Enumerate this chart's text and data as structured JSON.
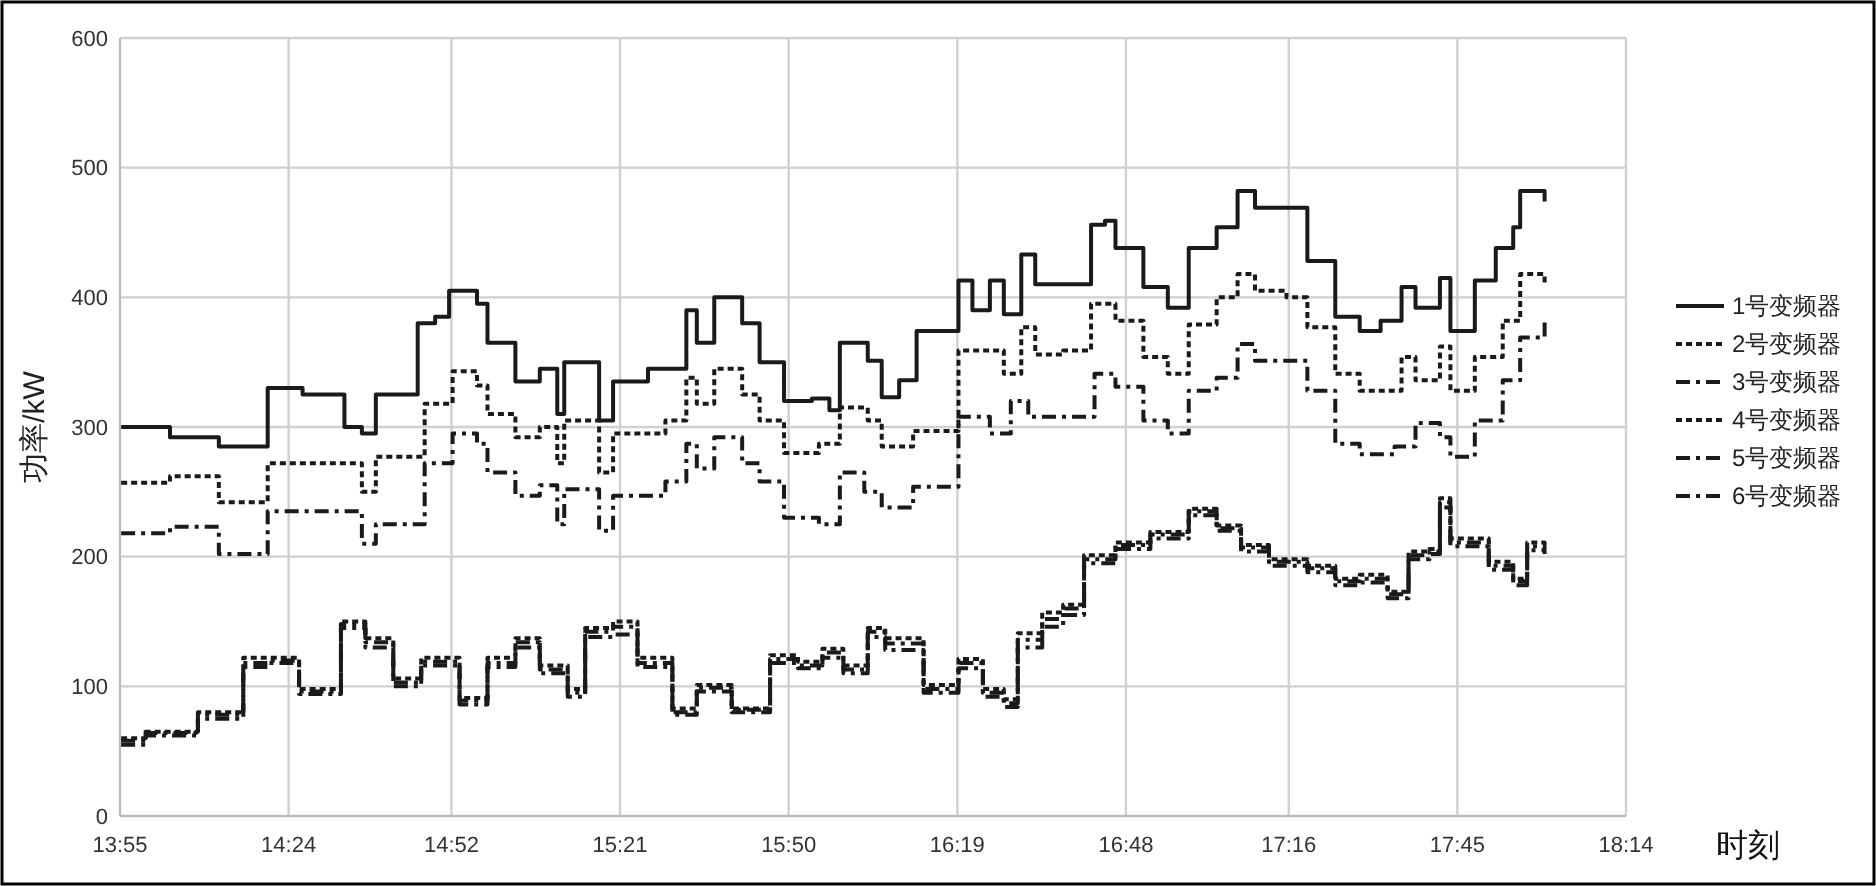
{
  "chart_data": {
    "type": "step",
    "xlabel": "时刻",
    "ylabel": "功率/kW",
    "xlim": [
      13.9167,
      18.2333
    ],
    "ylim": [
      0,
      600
    ],
    "xticks": [
      {
        "value": 13.9167,
        "label": "13:55"
      },
      {
        "value": 14.4,
        "label": "14:24"
      },
      {
        "value": 14.8667,
        "label": "14:52"
      },
      {
        "value": 15.35,
        "label": "15:21"
      },
      {
        "value": 15.8333,
        "label": "15:50"
      },
      {
        "value": 16.3167,
        "label": "16:19"
      },
      {
        "value": 16.8,
        "label": "16:48"
      },
      {
        "value": 17.2667,
        "label": "17:16"
      },
      {
        "value": 17.75,
        "label": "17:45"
      },
      {
        "value": 18.2333,
        "label": "18:14"
      }
    ],
    "yticks": [
      0,
      100,
      200,
      300,
      400,
      500,
      600
    ],
    "grid": true,
    "legend": "right",
    "series": [
      {
        "name": "1号变频器",
        "color": "#1a1a1a",
        "line_style": "solid",
        "x": [
          13.92,
          14.06,
          14.2,
          14.34,
          14.44,
          14.56,
          14.61,
          14.65,
          14.77,
          14.82,
          14.86,
          14.94,
          14.97,
          15.05,
          15.12,
          15.17,
          15.19,
          15.29,
          15.33,
          15.43,
          15.54,
          15.57,
          15.62,
          15.7,
          15.75,
          15.82,
          15.9,
          15.95,
          15.98,
          16.06,
          16.1,
          16.15,
          16.2,
          16.32,
          16.36,
          16.41,
          16.45,
          16.5,
          16.54,
          16.62,
          16.7,
          16.74,
          16.77,
          16.85,
          16.92,
          16.98,
          17.06,
          17.12,
          17.17,
          17.25,
          17.32,
          17.4,
          17.47,
          17.53,
          17.59,
          17.63,
          17.7,
          17.73,
          17.8,
          17.86,
          17.91,
          17.93,
          18.0
        ],
        "values": [
          300,
          292,
          285,
          330,
          325,
          300,
          295,
          325,
          380,
          385,
          405,
          395,
          365,
          335,
          345,
          310,
          350,
          305,
          335,
          345,
          390,
          365,
          400,
          380,
          350,
          320,
          322,
          313,
          365,
          351,
          323,
          336,
          374,
          413,
          390,
          413,
          387,
          433,
          410,
          410,
          456,
          459,
          438,
          408,
          392,
          438,
          454,
          482,
          469,
          469,
          428,
          385,
          374,
          382,
          408,
          392,
          415,
          374,
          413,
          438,
          454,
          482,
          474
        ]
      },
      {
        "name": "2号变频器",
        "color": "#1a1a1a",
        "line_style": "dotted",
        "x": [
          13.92,
          14.06,
          14.2,
          14.34,
          14.61,
          14.65,
          14.79,
          14.87,
          14.94,
          14.97,
          15.05,
          15.12,
          15.17,
          15.19,
          15.29,
          15.33,
          15.48,
          15.54,
          15.57,
          15.62,
          15.7,
          15.75,
          15.82,
          15.92,
          15.98,
          16.06,
          16.1,
          16.19,
          16.32,
          16.41,
          16.45,
          16.5,
          16.54,
          16.62,
          16.7,
          16.77,
          16.85,
          16.92,
          16.98,
          17.06,
          17.12,
          17.17,
          17.26,
          17.32,
          17.4,
          17.47,
          17.59,
          17.63,
          17.7,
          17.73,
          17.8,
          17.88,
          17.93,
          18.0
        ],
        "values": [
          257,
          262,
          242,
          272,
          250,
          277,
          318,
          343,
          332,
          310,
          292,
          300,
          272,
          305,
          265,
          295,
          305,
          338,
          318,
          345,
          325,
          305,
          280,
          287,
          315,
          305,
          285,
          297,
          359,
          359,
          341,
          377,
          356,
          359,
          395,
          382,
          354,
          341,
          379,
          400,
          418,
          405,
          400,
          377,
          341,
          328,
          354,
          336,
          362,
          328,
          354,
          382,
          418,
          410
        ]
      },
      {
        "name": "3号变频器",
        "color": "#1a1a1a",
        "line_style": "dashed",
        "x": [
          13.92,
          14.06,
          14.2,
          14.34,
          14.61,
          14.65,
          14.79,
          14.87,
          14.94,
          14.97,
          15.05,
          15.12,
          15.17,
          15.19,
          15.29,
          15.33,
          15.48,
          15.54,
          15.57,
          15.62,
          15.7,
          15.75,
          15.82,
          15.92,
          15.98,
          16.05,
          16.1,
          16.19,
          16.32,
          16.41,
          16.47,
          16.52,
          16.62,
          16.71,
          16.77,
          16.85,
          16.92,
          16.98,
          17.06,
          17.12,
          17.17,
          17.26,
          17.32,
          17.4,
          17.47,
          17.57,
          17.63,
          17.7,
          17.73,
          17.8,
          17.88,
          17.93,
          18.0
        ],
        "values": [
          218,
          223,
          202,
          235,
          210,
          225,
          272,
          295,
          287,
          265,
          247,
          255,
          225,
          252,
          220,
          247,
          258,
          287,
          268,
          292,
          272,
          258,
          230,
          225,
          265,
          250,
          238,
          254,
          308,
          295,
          320,
          308,
          308,
          341,
          331,
          305,
          295,
          328,
          338,
          364,
          351,
          351,
          328,
          287,
          279,
          285,
          303,
          292,
          277,
          305,
          336,
          369,
          382
        ]
      },
      {
        "name": "4号变频器",
        "color": "#1a1a1a",
        "line_style": "dotted",
        "x": [
          13.92,
          13.99,
          14.14,
          14.27,
          14.34,
          14.43,
          14.55,
          14.62,
          14.7,
          14.78,
          14.89,
          14.97,
          15.05,
          15.12,
          15.2,
          15.25,
          15.33,
          15.4,
          15.5,
          15.57,
          15.67,
          15.78,
          15.86,
          15.93,
          15.99,
          16.06,
          16.11,
          16.22,
          16.32,
          16.39,
          16.45,
          16.49,
          16.56,
          16.62,
          16.68,
          16.77,
          16.87,
          16.98,
          17.06,
          17.13,
          17.21,
          17.32,
          17.4,
          17.47,
          17.55,
          17.61,
          17.67,
          17.7,
          17.73,
          17.8,
          17.84,
          17.91,
          17.95,
          18.0
        ],
        "values": [
          60,
          65,
          80,
          122,
          122,
          98,
          150,
          137,
          106,
          122,
          91,
          122,
          137,
          116,
          98,
          145,
          150,
          122,
          83,
          101,
          83,
          124,
          119,
          129,
          116,
          145,
          137,
          101,
          121,
          98,
          90,
          141,
          157,
          163,
          201,
          211,
          219,
          237,
          224,
          209,
          198,
          193,
          183,
          186,
          173,
          204,
          206,
          245,
          214,
          214,
          196,
          183,
          211,
          209
        ]
      },
      {
        "name": "5号变频器",
        "color": "#1a1a1a",
        "line_style": "dashed",
        "x": [
          13.92,
          13.99,
          14.14,
          14.27,
          14.34,
          14.43,
          14.55,
          14.62,
          14.7,
          14.78,
          14.89,
          14.97,
          15.05,
          15.12,
          15.2,
          15.25,
          15.33,
          15.4,
          15.5,
          15.57,
          15.67,
          15.78,
          15.86,
          15.93,
          15.99,
          16.06,
          16.11,
          16.22,
          16.32,
          16.39,
          16.45,
          16.49,
          16.56,
          16.62,
          16.68,
          16.77,
          16.87,
          16.98,
          17.06,
          17.13,
          17.21,
          17.32,
          17.4,
          17.47,
          17.55,
          17.61,
          17.67,
          17.7,
          17.73,
          17.8,
          17.84,
          17.91,
          17.95,
          18.0
        ],
        "values": [
          55,
          62,
          75,
          115,
          118,
          94,
          145,
          130,
          100,
          116,
          86,
          115,
          130,
          110,
          92,
          138,
          140,
          115,
          78,
          96,
          80,
          118,
          114,
          122,
          110,
          138,
          128,
          95,
          114,
          92,
          84,
          130,
          146,
          155,
          195,
          206,
          214,
          232,
          220,
          204,
          193,
          188,
          178,
          180,
          168,
          198,
          202,
          238,
          208,
          208,
          190,
          178,
          205,
          202
        ]
      },
      {
        "name": "6号变频器",
        "color": "#1a1a1a",
        "line_style": "dashed",
        "x": [
          13.92,
          13.99,
          14.14,
          14.27,
          14.34,
          14.43,
          14.55,
          14.62,
          14.7,
          14.78,
          14.89,
          14.97,
          15.05,
          15.12,
          15.2,
          15.25,
          15.33,
          15.4,
          15.5,
          15.57,
          15.67,
          15.78,
          15.86,
          15.93,
          15.99,
          16.06,
          16.11,
          16.22,
          16.32,
          16.39,
          16.45,
          16.49,
          16.56,
          16.62,
          16.68,
          16.77,
          16.87,
          16.98,
          17.06,
          17.13,
          17.21,
          17.32,
          17.4,
          17.47,
          17.55,
          17.61,
          17.67,
          17.7,
          17.73,
          17.8,
          17.84,
          17.91,
          17.95,
          18.0
        ],
        "values": [
          58,
          64,
          78,
          118,
          120,
          96,
          148,
          134,
          103,
          119,
          89,
          118,
          134,
          113,
          95,
          142,
          146,
          118,
          80,
          99,
          82,
          121,
          116,
          126,
          113,
          142,
          133,
          98,
          118,
          95,
          87,
          136,
          152,
          160,
          198,
          209,
          217,
          235,
          222,
          207,
          196,
          191,
          181,
          183,
          171,
          201,
          204,
          242,
          211,
          211,
          193,
          181,
          208,
          206
        ]
      }
    ]
  }
}
